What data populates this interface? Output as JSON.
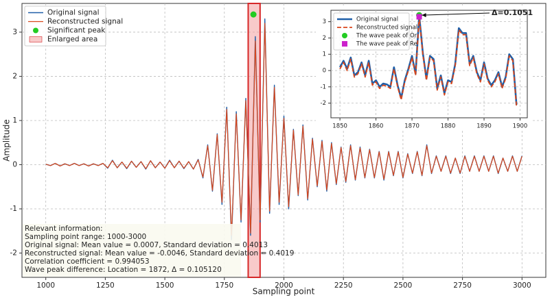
{
  "chart_data": [
    {
      "type": "line",
      "xlabel": "Sampling point",
      "ylabel": "Amplitude",
      "x": [
        1000,
        1020,
        1040,
        1060,
        1080,
        1100,
        1120,
        1140,
        1160,
        1180,
        1200,
        1220,
        1240,
        1260,
        1280,
        1300,
        1320,
        1340,
        1360,
        1380,
        1400,
        1420,
        1440,
        1460,
        1480,
        1500,
        1520,
        1540,
        1560,
        1580,
        1600,
        1620,
        1640,
        1660,
        1680,
        1700,
        1720,
        1740,
        1760,
        1780,
        1800,
        1820,
        1840,
        1860,
        1880,
        1900,
        1920,
        1940,
        1960,
        1980,
        2000,
        2020,
        2040,
        2060,
        2080,
        2100,
        2120,
        2140,
        2160,
        2180,
        2200,
        2220,
        2240,
        2260,
        2280,
        2300,
        2320,
        2340,
        2360,
        2380,
        2400,
        2420,
        2440,
        2460,
        2480,
        2500,
        2520,
        2540,
        2560,
        2580,
        2600,
        2620,
        2640,
        2660,
        2680,
        2700,
        2720,
        2740,
        2760,
        2780,
        2800,
        2820,
        2840,
        2860,
        2880,
        2900,
        2920,
        2940,
        2960,
        2980,
        3000
      ],
      "series": [
        {
          "name": "Original signal",
          "color": "#1f5fa8",
          "values": [
            0.01,
            -0.02,
            0.03,
            -0.03,
            0.02,
            -0.02,
            0.03,
            -0.02,
            0.02,
            -0.03,
            0.02,
            -0.02,
            0.03,
            -0.08,
            0.1,
            -0.07,
            0.06,
            -0.09,
            0.08,
            -0.06,
            0.07,
            -0.1,
            0.09,
            -0.07,
            0.06,
            -0.08,
            0.1,
            -0.07,
            0.08,
            -0.09,
            0.07,
            -0.1,
            0.12,
            -0.3,
            0.45,
            -0.6,
            0.7,
            -0.9,
            1.3,
            -1.7,
            1.2,
            -1.3,
            1.5,
            -1.6,
            2.9,
            -1.3,
            3.3,
            -1.1,
            1.8,
            -0.9,
            1.1,
            -1.0,
            0.8,
            -0.7,
            0.9,
            -0.8,
            0.6,
            -0.5,
            0.55,
            -0.6,
            0.5,
            -0.45,
            0.4,
            -0.4,
            0.45,
            -0.35,
            0.4,
            -0.3,
            0.35,
            -0.3,
            0.3,
            -0.35,
            0.3,
            -0.25,
            0.3,
            -0.3,
            0.25,
            -0.2,
            0.3,
            -0.25,
            0.45,
            -0.2,
            0.2,
            -0.15,
            0.2,
            -0.2,
            0.15,
            -0.2,
            0.2,
            -0.15,
            0.2,
            -0.15,
            0.2,
            -0.15,
            0.2,
            -0.2,
            0.15,
            -0.15,
            0.2,
            -0.15,
            0.2
          ]
        },
        {
          "name": "Reconstructed signal",
          "color": "#d9461a",
          "values": [
            0.01,
            -0.02,
            0.03,
            -0.03,
            0.02,
            -0.02,
            0.03,
            -0.02,
            0.02,
            -0.03,
            0.02,
            -0.02,
            0.03,
            -0.07,
            0.09,
            -0.07,
            0.06,
            -0.08,
            0.08,
            -0.06,
            0.07,
            -0.09,
            0.09,
            -0.07,
            0.06,
            -0.08,
            0.09,
            -0.07,
            0.08,
            -0.08,
            0.07,
            -0.1,
            0.11,
            -0.28,
            0.43,
            -0.58,
            0.68,
            -0.85,
            1.25,
            -1.6,
            1.15,
            -1.25,
            1.45,
            -1.55,
            2.8,
            -1.25,
            3.2,
            -1.05,
            1.75,
            -0.85,
            1.05,
            -0.95,
            0.78,
            -0.68,
            0.87,
            -0.77,
            0.58,
            -0.48,
            0.53,
            -0.57,
            0.48,
            -0.43,
            0.39,
            -0.38,
            0.43,
            -0.34,
            0.38,
            -0.29,
            0.34,
            -0.29,
            0.29,
            -0.33,
            0.29,
            -0.24,
            0.29,
            -0.29,
            0.24,
            -0.19,
            0.29,
            -0.24,
            0.43,
            -0.19,
            0.19,
            -0.15,
            0.19,
            -0.19,
            0.15,
            -0.19,
            0.19,
            -0.15,
            0.19,
            -0.15,
            0.19,
            -0.15,
            0.19,
            -0.19,
            0.15,
            -0.15,
            0.19,
            -0.15,
            0.19
          ]
        }
      ],
      "xlim": [
        900,
        3100
      ],
      "ylim": [
        -2.55,
        3.65
      ],
      "xticks": [
        1000,
        1250,
        1500,
        1750,
        2000,
        2250,
        2500,
        2750,
        3000
      ],
      "yticks": [
        -2,
        -1,
        0,
        1,
        2,
        3
      ],
      "grid": true,
      "legend": "upper left",
      "peak": {
        "name": "Significant peak",
        "x": 1872,
        "y": 3.4,
        "color": "#22cc22"
      },
      "highlight": {
        "name": "Enlarged area",
        "x": [
          1850,
          1900
        ],
        "color": "#f4a6a6",
        "edge": "#d62728"
      },
      "info_lines": [
        "Relevant information:",
        "Sampling point range: 1000-3000",
        "Original signal: Mean value = 0.0007, Standard deviation = 0.4013",
        "Reconstructed signal: Mean value = -0.0046, Standard deviation = 0.4019",
        "Correlation coefficient = 0.994053",
        "Wave peak difference: Location = 1872, Δ = 0.105120"
      ]
    },
    {
      "type": "line",
      "x": [
        1850,
        1851,
        1852,
        1853,
        1854,
        1855,
        1856,
        1857,
        1858,
        1859,
        1860,
        1861,
        1862,
        1863,
        1864,
        1865,
        1866,
        1867,
        1868,
        1869,
        1870,
        1871,
        1872,
        1873,
        1874,
        1875,
        1876,
        1877,
        1878,
        1879,
        1880,
        1881,
        1882,
        1883,
        1884,
        1885,
        1886,
        1887,
        1888,
        1889,
        1890,
        1891,
        1892,
        1893,
        1894,
        1895,
        1896,
        1897,
        1898,
        1899
      ],
      "series": [
        {
          "name": "Original signal",
          "color": "#1f5fa8",
          "values": [
            0.2,
            0.6,
            0.1,
            0.8,
            -0.3,
            -0.1,
            0.5,
            -0.3,
            0.6,
            -0.8,
            -0.6,
            -1.0,
            -0.8,
            -0.85,
            -1.0,
            0.2,
            -0.9,
            -1.7,
            -0.6,
            0.1,
            0.9,
            -0.2,
            3.4,
            1.1,
            -0.5,
            0.9,
            0.7,
            -1.1,
            -0.3,
            -1.4,
            -0.6,
            -0.7,
            0.4,
            2.6,
            2.3,
            2.3,
            0.4,
            0.9,
            -0.1,
            -0.6,
            0.5,
            -0.5,
            -0.9,
            -0.6,
            -0.1,
            -1.0,
            -0.4,
            1.0,
            0.7,
            -2.1
          ]
        },
        {
          "name": "Reconstructed signal",
          "color": "#d9461a",
          "values": [
            0.1,
            0.5,
            0.0,
            0.7,
            -0.4,
            -0.2,
            0.4,
            -0.4,
            0.5,
            -0.9,
            -0.7,
            -1.1,
            -0.9,
            -0.95,
            -1.1,
            0.1,
            -1.0,
            -1.8,
            -0.7,
            0.0,
            0.8,
            -0.3,
            3.3,
            1.0,
            -0.6,
            0.8,
            0.6,
            -1.2,
            -0.4,
            -1.5,
            -0.7,
            -0.8,
            0.3,
            2.5,
            2.2,
            2.2,
            0.3,
            0.8,
            -0.2,
            -0.7,
            0.4,
            -0.6,
            -1.0,
            -0.7,
            -0.2,
            -1.1,
            -0.5,
            0.9,
            0.6,
            -2.2
          ]
        }
      ],
      "xlim": [
        1847.5,
        1902
      ],
      "ylim": [
        -2.9,
        3.7
      ],
      "xticks": [
        1850,
        1860,
        1870,
        1880,
        1890,
        1900
      ],
      "yticks": [
        -2,
        -1,
        0,
        1,
        2,
        3
      ],
      "grid": true,
      "legend": "upper left",
      "peaks": [
        {
          "name": "The wave peak of Or",
          "x": 1872,
          "y": 3.4,
          "color": "#22cc22",
          "marker": "circle"
        },
        {
          "name": "The wave peak of Re",
          "x": 1872,
          "y": 3.3,
          "color": "#cc22cc",
          "marker": "square"
        }
      ],
      "annotation": {
        "text": "Δ=0.1051",
        "x": 1872,
        "y": 3.4
      }
    }
  ]
}
